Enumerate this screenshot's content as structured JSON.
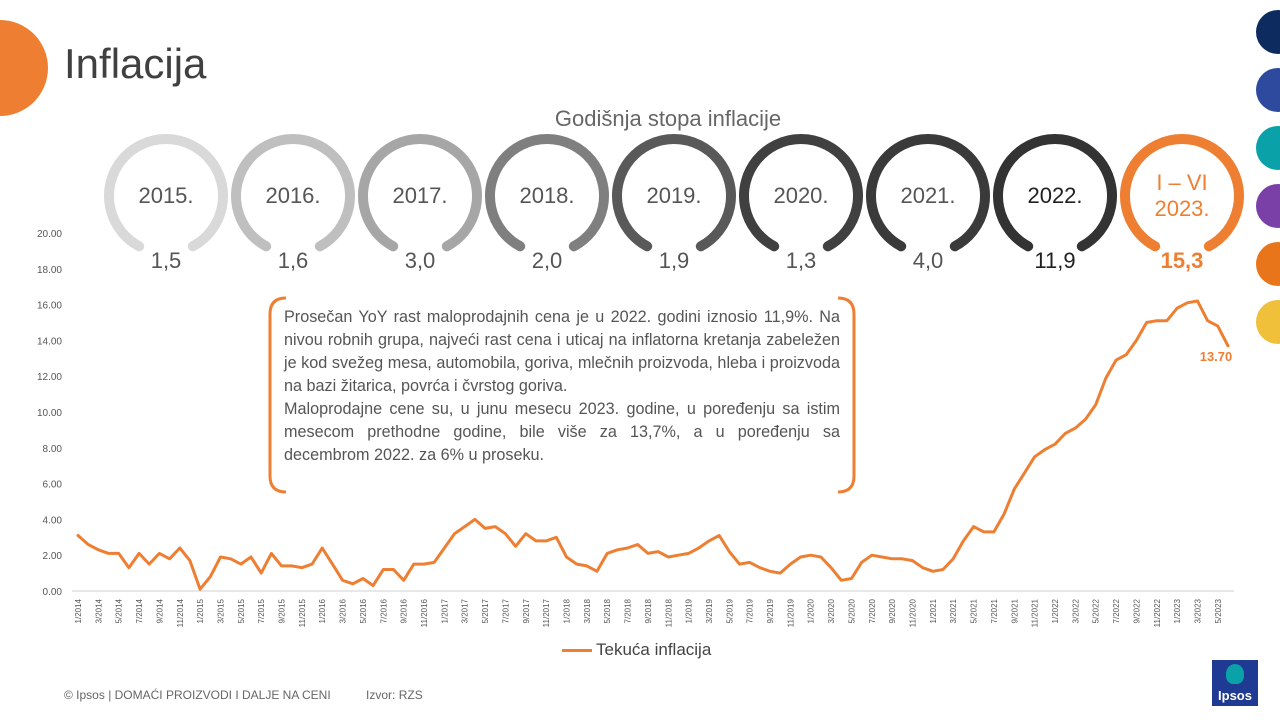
{
  "header": {
    "title": "Inflacija",
    "subtitle": "Godišnja stopa inflacije"
  },
  "annual_rates": [
    {
      "year": "2015.",
      "value": "1,5",
      "color": "#d9d9d9",
      "value_color": "#555555",
      "bold": false
    },
    {
      "year": "2016.",
      "value": "1,6",
      "color": "#bfbfbf",
      "value_color": "#555555",
      "bold": false
    },
    {
      "year": "2017.",
      "value": "3,0",
      "color": "#a6a6a6",
      "value_color": "#555555",
      "bold": false
    },
    {
      "year": "2018.",
      "value": "2,0",
      "color": "#7f7f7f",
      "value_color": "#555555",
      "bold": false
    },
    {
      "year": "2019.",
      "value": "1,9",
      "color": "#595959",
      "value_color": "#555555",
      "bold": false
    },
    {
      "year": "2020.",
      "value": "1,3",
      "color": "#404040",
      "value_color": "#555555",
      "bold": false
    },
    {
      "year": "2021.",
      "value": "4,0",
      "color": "#3a3a3a",
      "value_color": "#555555",
      "bold": false
    },
    {
      "year": "2022.",
      "value": "11,9",
      "color": "#333333",
      "value_color": "#222222",
      "bold": false
    },
    {
      "year": "I – VI\n2023.",
      "value": "15,3",
      "color": "#ee7f32",
      "value_color": "#ee7f32",
      "bold": true
    }
  ],
  "note": {
    "paragraph1": "Prosečan YoY rast maloprodajnih cena je u 2022. godini iznosio 11,9%. Na nivou robnih grupa, najveći rast cena i uticaj na inflatorna kretanja zabeležen je kod svežeg mesa, automobila, goriva, mlečnih proizvoda, hleba i proizvoda na bazi žitarica, povrća i čvrstog goriva.",
    "paragraph2": "Maloprodajne cene su, u junu mesecu 2023. godine, u poređenju sa istim mesecom prethodne godine, bile više za 13,7%, a u poređenju sa decembrom 2022. za 6% u proseku."
  },
  "footer": {
    "copyright": "© Ipsos | DOMAĆI PROIZVODI I DALJE NA CENI",
    "source": "Izvor: RZS"
  },
  "logo": {
    "text": "Ipsos"
  },
  "theme": {
    "accent": "#ee7f32",
    "dots": [
      "#0d2b5e",
      "#2e4a9e",
      "#0aa2a8",
      "#7b3fa8",
      "#e8751a",
      "#f0c03a"
    ]
  },
  "chart_data": {
    "type": "line",
    "ylim": [
      0,
      20
    ],
    "yticks": [
      "0.00",
      "2.00",
      "4.00",
      "6.00",
      "8.00",
      "10.00",
      "12.00",
      "14.00",
      "16.00",
      "18.00",
      "20.00"
    ],
    "xtick_labels": [
      "1/2014",
      "3/2014",
      "5/2014",
      "7/2014",
      "9/2014",
      "11/2014",
      "1/2015",
      "3/2015",
      "5/2015",
      "7/2015",
      "9/2015",
      "11/2015",
      "1/2016",
      "3/2016",
      "5/2016",
      "7/2016",
      "9/2016",
      "11/2016",
      "1/2017",
      "3/2017",
      "5/2017",
      "7/2017",
      "9/2017",
      "11/2017",
      "1/2018",
      "3/2018",
      "5/2018",
      "7/2018",
      "9/2018",
      "11/2018",
      "1/2019",
      "3/2019",
      "5/2019",
      "7/2019",
      "9/2019",
      "11/2019",
      "1/2020",
      "3/2020",
      "5/2020",
      "7/2020",
      "9/2020",
      "11/2020",
      "1/2021",
      "3/2021",
      "5/2021",
      "7/2021",
      "9/2021",
      "11/2021",
      "1/2022",
      "3/2022",
      "5/2022",
      "7/2022",
      "9/2022",
      "11/2022",
      "1/2023",
      "3/2023",
      "5/2023"
    ],
    "series": [
      {
        "name": "Tekuća inflacija",
        "color": "#ee7f32",
        "values": [
          3.1,
          2.6,
          2.3,
          2.1,
          2.1,
          1.3,
          2.1,
          1.5,
          2.1,
          1.8,
          2.4,
          1.7,
          0.1,
          0.8,
          1.9,
          1.8,
          1.5,
          1.9,
          1.0,
          2.1,
          1.4,
          1.4,
          1.3,
          1.5,
          2.4,
          1.5,
          0.6,
          0.4,
          0.7,
          0.3,
          1.2,
          1.2,
          0.6,
          1.5,
          1.5,
          1.6,
          2.4,
          3.2,
          3.6,
          4.0,
          3.5,
          3.6,
          3.2,
          2.5,
          3.2,
          2.8,
          2.8,
          3.0,
          1.9,
          1.5,
          1.4,
          1.1,
          2.1,
          2.3,
          2.4,
          2.6,
          2.1,
          2.2,
          1.9,
          2.0,
          2.1,
          2.4,
          2.8,
          3.1,
          2.2,
          1.5,
          1.6,
          1.3,
          1.1,
          1.0,
          1.5,
          1.9,
          2.0,
          1.9,
          1.3,
          0.6,
          0.7,
          1.6,
          2.0,
          1.9,
          1.8,
          1.8,
          1.7,
          1.3,
          1.1,
          1.2,
          1.8,
          2.8,
          3.6,
          3.3,
          3.3,
          4.3,
          5.7,
          6.6,
          7.5,
          7.9,
          8.2,
          8.8,
          9.1,
          9.6,
          10.4,
          11.9,
          12.9,
          13.2,
          14.0,
          15.0,
          15.1,
          15.1,
          15.8,
          16.1,
          16.2,
          15.1,
          14.8,
          13.7
        ]
      }
    ],
    "end_label": "13.70",
    "legend": "bottom"
  }
}
